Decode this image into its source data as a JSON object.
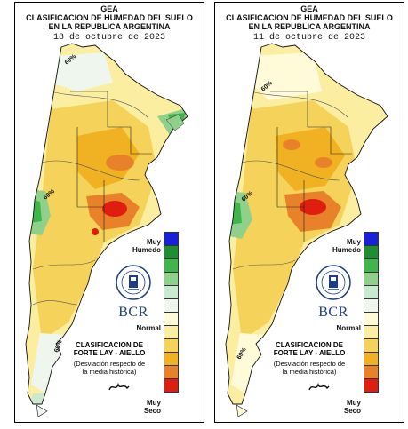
{
  "maps": [
    {
      "title": "GEA",
      "subtitle1": "CLASIFICACION DE HUMEDAD DEL SUELO",
      "subtitle2": "EN LA REPUBLICA ARGENTINA",
      "date": "18 de octubre de 2023"
    },
    {
      "title": "GEA",
      "subtitle1": "CLASIFICACION DE HUMEDAD DEL SUELO",
      "subtitle2": "EN LA REPUBLICA ARGENTINA",
      "date": "11 de octubre de 2023"
    }
  ],
  "legend": {
    "top_label_1": "Muy",
    "top_label_2": "Humedo",
    "middle_label": "Normal",
    "bottom_label_1": "Muy",
    "bottom_label_2": "Seco",
    "classes": [
      "#1a20d8",
      "#1d8f32",
      "#3fb54c",
      "#8fd18a",
      "#c9ead0",
      "#eef6ee",
      "#fffbd9",
      "#fbeea0",
      "#f5d35a",
      "#f0b122",
      "#e8822a",
      "#e01e10"
    ]
  },
  "classification": {
    "line1": "CLASIFICACION DE",
    "line2": "FORTE LAY - AIELLO",
    "note1": "(Desviación respecto de",
    "note2": "la media histórica)"
  },
  "institution": {
    "acronym": "BCR",
    "seal_text": "BOLSA DE COMERCIO DE ROSARIO"
  },
  "contour_labels": [
    "40%",
    "60%",
    "80%"
  ]
}
